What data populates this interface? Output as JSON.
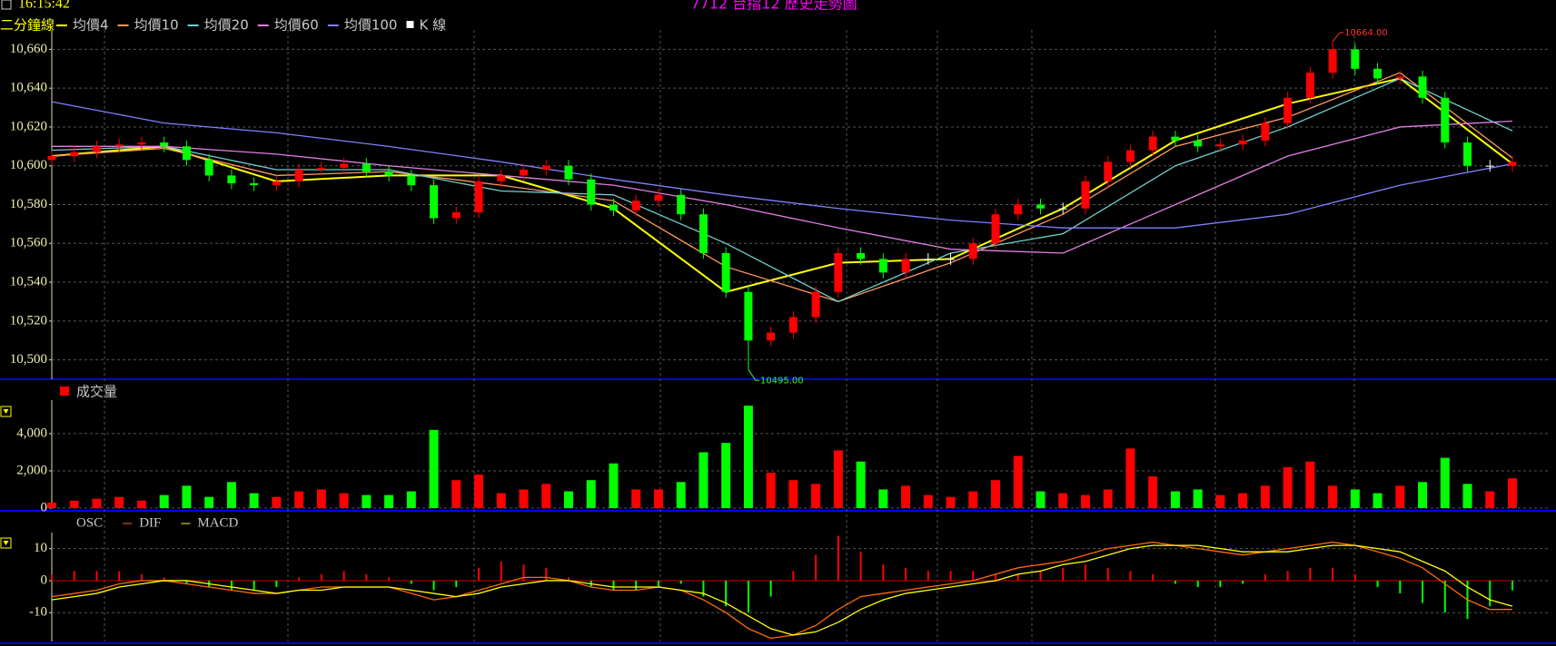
{
  "header": {
    "time": "16:15:42"
  },
  "chart_data": [
    {
      "type": "candlestick",
      "title": "7712 台指12  歷史走勢圖",
      "period_label": "二分鐘線",
      "k_label": "K 線",
      "up_color": "#ff0000",
      "down_color": "#00ff00",
      "open": [
        10603,
        10605,
        10607,
        10610,
        10611,
        10612,
        10610,
        10603,
        10595,
        10591,
        10590,
        10592,
        10598,
        10599,
        10601,
        10597,
        10595,
        10590,
        10573,
        10576,
        10592,
        10595,
        10598,
        10600,
        10593,
        10580,
        10577,
        10582,
        10585,
        10575,
        10555,
        10535,
        10510,
        10514,
        10522,
        10535,
        10555,
        10552,
        10545,
        10552,
        10552,
        10552,
        10560,
        10575,
        10580,
        10578,
        10578,
        10592,
        10602,
        10608,
        10615,
        10613,
        10610,
        10611,
        10613,
        10622,
        10635,
        10648,
        10660,
        10650,
        10645,
        10646,
        10635,
        10612,
        10600,
        10600
      ],
      "high": [
        10608,
        10610,
        10613,
        10614,
        10615,
        10615,
        10613,
        10606,
        10598,
        10594,
        10595,
        10601,
        10602,
        10604,
        10604,
        10600,
        10598,
        10593,
        10579,
        10595,
        10598,
        10601,
        10603,
        10603,
        10596,
        10583,
        10585,
        10588,
        10588,
        10578,
        10558,
        10538,
        10517,
        10525,
        10538,
        10558,
        10558,
        10555,
        10555,
        10555,
        10555,
        10563,
        10578,
        10583,
        10583,
        10581,
        10595,
        10605,
        10611,
        10618,
        10618,
        10616,
        10614,
        10616,
        10625,
        10638,
        10651,
        10664,
        10663,
        10653,
        10649,
        10649,
        10638,
        10615,
        10603,
        10605
      ],
      "low": [
        10600,
        10602,
        10604,
        10607,
        10608,
        10607,
        10600,
        10592,
        10588,
        10587,
        10587,
        10589,
        10595,
        10596,
        10594,
        10592,
        10587,
        10570,
        10570,
        10573,
        10589,
        10592,
        10595,
        10590,
        10577,
        10574,
        10574,
        10579,
        10572,
        10552,
        10532,
        10495,
        10507,
        10511,
        10519,
        10532,
        10549,
        10542,
        10542,
        10549,
        10549,
        10549,
        10557,
        10572,
        10575,
        10575,
        10575,
        10589,
        10599,
        10605,
        10610,
        10607,
        10607,
        10608,
        10610,
        10619,
        10632,
        10645,
        10647,
        10642,
        10642,
        10632,
        10609,
        10597,
        10597,
        10597
      ],
      "close": [
        10605,
        10607,
        10610,
        10611,
        10612,
        10610,
        10603,
        10595,
        10591,
        10590,
        10592,
        10598,
        10599,
        10601,
        10597,
        10595,
        10590,
        10573,
        10576,
        10592,
        10595,
        10598,
        10600,
        10593,
        10580,
        10577,
        10582,
        10585,
        10575,
        10555,
        10535,
        10510,
        10514,
        10522,
        10535,
        10555,
        10552,
        10545,
        10552,
        10552,
        10552,
        10560,
        10575,
        10580,
        10578,
        10578,
        10592,
        10602,
        10608,
        10615,
        10613,
        10610,
        10611,
        10613,
        10622,
        10635,
        10648,
        10660,
        10650,
        10645,
        10646,
        10635,
        10612,
        10600,
        10600,
        10602
      ],
      "ma_x": [
        0,
        5,
        10,
        15,
        20,
        25,
        30,
        35,
        40,
        45,
        50,
        55,
        60,
        65
      ],
      "series": [
        {
          "name": "均價4",
          "color": "#ffff00",
          "values": [
            10605,
            10610,
            10592,
            10595,
            10595,
            10578,
            10535,
            10550,
            10552,
            10578,
            10613,
            10632,
            10645,
            10601
          ]
        },
        {
          "name": "均價10",
          "color": "#ff9a60",
          "values": [
            10605,
            10609,
            10595,
            10597,
            10590,
            10582,
            10548,
            10530,
            10550,
            10575,
            10610,
            10625,
            10648,
            10604
          ]
        },
        {
          "name": "均價20",
          "color": "#70d0d0",
          "values": [
            10608,
            10610,
            10598,
            10598,
            10587,
            10585,
            10560,
            10530,
            10555,
            10565,
            10600,
            10620,
            10645,
            10618
          ]
        },
        {
          "name": "均價60",
          "color": "#e080e0",
          "values": [
            10610,
            10610,
            10606,
            10600,
            10595,
            10590,
            10580,
            10568,
            10557,
            10555,
            10580,
            10605,
            10620,
            10623
          ]
        },
        {
          "name": "均價100",
          "color": "#8080ff",
          "values": [
            10633,
            10622,
            10617,
            10610,
            10602,
            10593,
            10585,
            10578,
            10572,
            10568,
            10568,
            10575,
            10590,
            10601
          ]
        }
      ],
      "annotations": [
        "10664.00",
        "10495.00"
      ],
      "ylim": [
        10490,
        10670
      ],
      "yticks": [
        {
          "value": 10500,
          "label": "10,500"
        },
        {
          "value": 10520,
          "label": "10,520"
        },
        {
          "value": 10540,
          "label": "10,540"
        },
        {
          "value": 10560,
          "label": "10,560"
        },
        {
          "value": 10580,
          "label": "10,580"
        },
        {
          "value": 10600,
          "label": "10,600"
        },
        {
          "value": 10620,
          "label": "10,620"
        },
        {
          "value": 10640,
          "label": "10,640"
        },
        {
          "value": 10660,
          "label": "10,660"
        }
      ],
      "grid": true
    },
    {
      "type": "bar",
      "title": "成交量",
      "color": "#ff0000",
      "values": [
        300,
        400,
        500,
        600,
        400,
        700,
        1200,
        600,
        1400,
        800,
        600,
        900,
        1000,
        800,
        700,
        700,
        900,
        4200,
        1500,
        1800,
        800,
        1000,
        1300,
        900,
        1500,
        2400,
        1000,
        1000,
        1400,
        3000,
        3500,
        5500,
        1900,
        1500,
        1300,
        3100,
        2500,
        1000,
        1200,
        700,
        600,
        900,
        1500,
        2800,
        900,
        800,
        700,
        1000,
        3200,
        1700,
        900,
        1000,
        700,
        800,
        1200,
        2200,
        2500,
        1200,
        1000,
        800,
        1200,
        1400,
        2700,
        1300,
        900,
        1600
      ],
      "ylim": [
        0,
        5800
      ],
      "yticks": [
        0,
        {
          "value": 2000,
          "label": "2,000"
        },
        {
          "value": 4000,
          "label": "4,000"
        }
      ],
      "grid": true
    },
    {
      "type": "macd",
      "up_color": "#ff0000",
      "down_color": "#00ff00",
      "series": [
        {
          "name": "OSC",
          "values": [
            2,
            3,
            3,
            3,
            2,
            1,
            -1,
            -2,
            -3,
            -3,
            -2,
            1,
            2,
            3,
            2,
            1,
            -1,
            -3,
            -2,
            4,
            6,
            5,
            4,
            1,
            -2,
            -3,
            -3,
            -2,
            -1,
            -5,
            -8,
            -10,
            -5,
            3,
            8,
            14,
            9,
            5,
            4,
            3,
            3,
            3,
            2,
            2,
            3,
            4,
            5,
            4,
            3,
            2,
            -1,
            -2,
            -2,
            -1,
            2,
            3,
            4,
            4,
            2,
            -2,
            -4,
            -7,
            -10,
            -12,
            -8,
            -3
          ]
        },
        {
          "name": "DIF",
          "color": "#ff6a00",
          "values": [
            -5,
            -4,
            -3,
            -1,
            0,
            0,
            -1,
            -2,
            -3,
            -4,
            -4,
            -3,
            -2,
            -2,
            -2,
            -2,
            -4,
            -6,
            -5,
            -3,
            -1,
            1,
            1,
            0,
            -2,
            -3,
            -3,
            -2,
            -3,
            -6,
            -10,
            -15,
            -18,
            -17,
            -14,
            -9,
            -5,
            -4,
            -3,
            -2,
            -1,
            0,
            2,
            4,
            5,
            6,
            8,
            10,
            11,
            12,
            11,
            10,
            9,
            8,
            9,
            10,
            11,
            12,
            11,
            9,
            7,
            4,
            -1,
            -6,
            -9,
            -9
          ]
        },
        {
          "name": "MACD",
          "color": "#ffff00",
          "values": [
            -6,
            -5,
            -4,
            -2,
            -1,
            0,
            0,
            -1,
            -2,
            -3,
            -4,
            -3,
            -3,
            -2,
            -2,
            -2,
            -3,
            -4,
            -5,
            -4,
            -2,
            -1,
            0,
            0,
            -1,
            -2,
            -2,
            -2,
            -3,
            -4,
            -7,
            -11,
            -15,
            -17,
            -16,
            -13,
            -9,
            -6,
            -4,
            -3,
            -2,
            -1,
            0,
            2,
            3,
            5,
            6,
            8,
            10,
            11,
            11,
            11,
            10,
            9,
            9,
            9,
            10,
            11,
            11,
            10,
            9,
            6,
            3,
            -2,
            -6,
            -8
          ]
        }
      ],
      "ylim": [
        -19,
        15
      ],
      "yticks": [
        10,
        0,
        -10
      ],
      "grid": true
    }
  ]
}
